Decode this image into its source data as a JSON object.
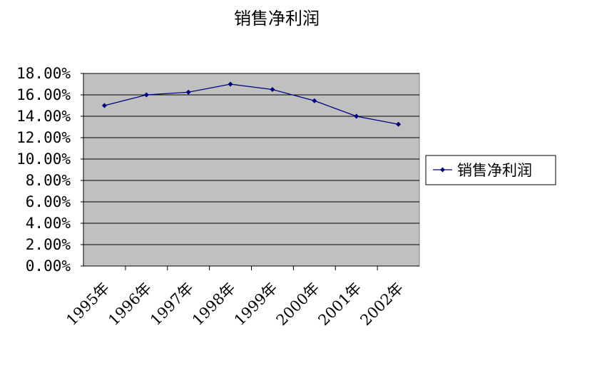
{
  "chart_data": {
    "type": "line",
    "title": "销售净利润",
    "categories": [
      "1995年",
      "1996年",
      "1997年",
      "1998年",
      "1999年",
      "2000年",
      "2001年",
      "2002年"
    ],
    "series": [
      {
        "name": "销售净利润",
        "values": [
          15.0,
          16.0,
          16.25,
          17.0,
          16.5,
          15.45,
          14.0,
          13.25
        ],
        "color": "#000080"
      }
    ],
    "y_tick_labels": [
      "0.00%",
      "2.00%",
      "4.00%",
      "6.00%",
      "8.00%",
      "10.00%",
      "12.00%",
      "14.00%",
      "16.00%",
      "18.00%"
    ],
    "ylim": [
      0,
      18
    ],
    "y_unit": "%",
    "grid": true,
    "plot_background": "#c0c0c0",
    "legend_position": "right"
  }
}
